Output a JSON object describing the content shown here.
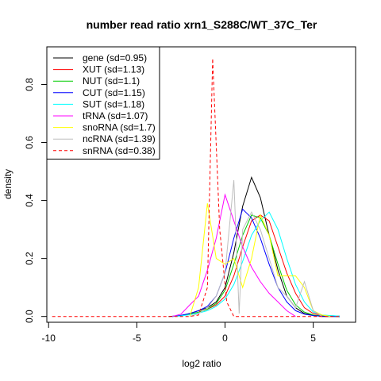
{
  "chart_data": {
    "type": "line",
    "title": "number read ratio xrn1_S288C/WT_37C_Ter",
    "xlabel": "log2 ratio",
    "ylabel": "density",
    "xlim": [
      -10.1,
      7.4
    ],
    "ylim": [
      -0.02,
      0.93
    ],
    "xticks": [
      -10,
      -5,
      0,
      5
    ],
    "yticks": [
      0.0,
      0.2,
      0.4,
      0.6,
      0.8
    ],
    "grid": false,
    "legend_position": "top-left",
    "series": [
      {
        "name": "gene (sd=0.95)",
        "color": "#000000",
        "dash": "solid",
        "x": [
          -3.2,
          -2.5,
          -2.0,
          -1.5,
          -1.0,
          -0.5,
          0.0,
          0.5,
          1.0,
          1.5,
          2.0,
          2.5,
          3.0,
          3.5,
          4.0,
          4.5,
          5.0,
          5.5,
          6.5
        ],
        "y": [
          0,
          0.003,
          0.01,
          0.02,
          0.03,
          0.05,
          0.1,
          0.22,
          0.38,
          0.48,
          0.41,
          0.28,
          0.16,
          0.07,
          0.03,
          0.01,
          0.004,
          0,
          0
        ]
      },
      {
        "name": "XUT (sd=1.13)",
        "color": "#ff0000",
        "dash": "solid",
        "x": [
          -3.0,
          -2.5,
          -2.0,
          -1.5,
          -1.0,
          -0.5,
          0.0,
          0.5,
          1.0,
          1.5,
          2.0,
          2.5,
          3.0,
          3.5,
          4.0,
          4.5,
          5.0,
          5.5,
          6.5
        ],
        "y": [
          0,
          0.003,
          0.008,
          0.015,
          0.025,
          0.04,
          0.07,
          0.14,
          0.24,
          0.33,
          0.35,
          0.33,
          0.24,
          0.15,
          0.08,
          0.03,
          0.01,
          0.004,
          0.001
        ]
      },
      {
        "name": "NUT (sd=1.1)",
        "color": "#00cc00",
        "dash": "solid",
        "x": [
          -3.0,
          -2.5,
          -2.0,
          -1.5,
          -1.0,
          -0.5,
          0.0,
          0.5,
          1.0,
          1.5,
          2.0,
          2.5,
          3.0,
          3.5,
          4.0,
          4.5,
          5.0,
          5.5,
          6.5
        ],
        "y": [
          0,
          0.003,
          0.008,
          0.015,
          0.025,
          0.045,
          0.09,
          0.18,
          0.28,
          0.35,
          0.34,
          0.28,
          0.18,
          0.09,
          0.04,
          0.015,
          0.005,
          0.002,
          0
        ]
      },
      {
        "name": "CUT (sd=1.15)",
        "color": "#0000ff",
        "dash": "solid",
        "x": [
          -3.0,
          -2.5,
          -2.0,
          -1.5,
          -1.0,
          -0.5,
          0.0,
          0.5,
          1.0,
          1.5,
          2.0,
          2.5,
          3.0,
          3.5,
          4.0,
          4.5,
          5.0,
          5.5,
          6.5
        ],
        "y": [
          0,
          0.004,
          0.01,
          0.02,
          0.035,
          0.07,
          0.15,
          0.27,
          0.37,
          0.34,
          0.27,
          0.18,
          0.1,
          0.05,
          0.02,
          0.008,
          0.003,
          0.001,
          0
        ]
      },
      {
        "name": "SUT (sd=1.18)",
        "color": "#00ffff",
        "dash": "solid",
        "x": [
          -3.0,
          -2.5,
          -2.0,
          -1.5,
          -1.0,
          -0.5,
          0.0,
          0.5,
          1.0,
          1.5,
          2.0,
          2.5,
          3.0,
          3.5,
          4.0,
          4.5,
          5.0,
          5.5,
          6.5
        ],
        "y": [
          0,
          0.002,
          0.006,
          0.012,
          0.02,
          0.035,
          0.06,
          0.11,
          0.19,
          0.28,
          0.33,
          0.36,
          0.3,
          0.2,
          0.11,
          0.05,
          0.015,
          0.005,
          0.001
        ]
      },
      {
        "name": "tRNA (sd=1.07)",
        "color": "#ff00ff",
        "dash": "solid",
        "x": [
          -3.0,
          -2.5,
          -2.0,
          -1.5,
          -1.0,
          -0.5,
          0.0,
          0.5,
          1.0,
          1.5,
          2.0,
          2.5,
          3.0,
          3.5,
          4.0
        ],
        "y": [
          0,
          0.008,
          0.04,
          0.07,
          0.16,
          0.27,
          0.42,
          0.33,
          0.24,
          0.17,
          0.12,
          0.08,
          0.05,
          0.02,
          0
        ]
      },
      {
        "name": "snoRNA (sd=1.7)",
        "color": "#ffff00",
        "dash": "solid",
        "x": [
          -2.0,
          -1.5,
          -1.0,
          -0.5,
          0.0,
          0.5,
          1.0,
          1.5,
          2.0,
          2.5,
          3.0,
          3.5,
          4.0,
          4.5,
          5.0,
          5.5,
          6.0
        ],
        "y": [
          0,
          0.1,
          0.39,
          0.2,
          0.18,
          0.2,
          0.1,
          0.2,
          0.35,
          0.28,
          0.14,
          0.14,
          0.14,
          0.1,
          0.02,
          0.005,
          0
        ]
      },
      {
        "name": "ncRNA (sd=1.39)",
        "color": "#bebebe",
        "dash": "solid",
        "x": [
          -2.0,
          -1.5,
          -1.0,
          -0.5,
          0.0,
          0.5,
          0.8,
          1.0,
          1.5,
          2.0,
          2.5,
          3.0,
          3.5,
          4.0,
          4.5,
          5.0,
          5.5
        ],
        "y": [
          0,
          0.01,
          0.03,
          0.07,
          0.15,
          0.47,
          0.01,
          0.3,
          0.36,
          0.3,
          0.2,
          0.1,
          0.07,
          0.03,
          0.12,
          0.02,
          0
        ]
      },
      {
        "name": "snRNA (sd=0.38)",
        "color": "#ff0000",
        "dash": "dashed",
        "x": [
          -9.8,
          -3.0,
          -2.0,
          -1.5,
          -1.0,
          -0.7,
          -0.3,
          0.1,
          0.5,
          6.5
        ],
        "y": [
          0,
          0,
          0,
          0.005,
          0.1,
          0.89,
          0.3,
          0.05,
          0,
          0
        ]
      }
    ]
  }
}
